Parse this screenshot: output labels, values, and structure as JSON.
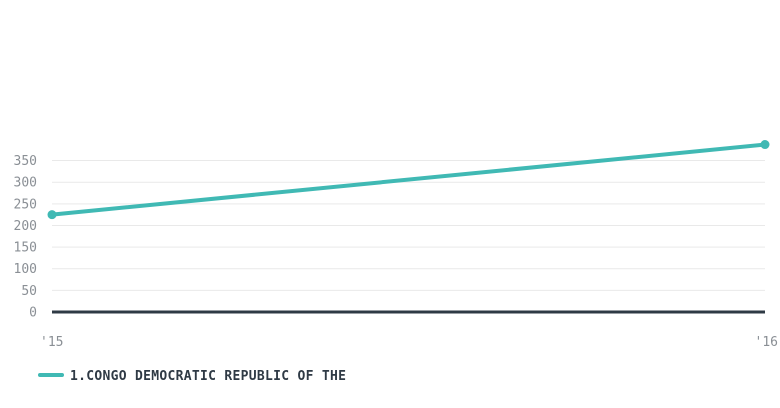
{
  "chart_data": {
    "type": "line",
    "x": [
      "'15",
      "'16"
    ],
    "series": [
      {
        "name": "1.CONGO DEMOCRATIC REPUBLIC OF THE",
        "values": [
          225,
          387
        ],
        "color": "#40b9b4"
      }
    ],
    "yticks": [
      0,
      50,
      100,
      150,
      200,
      250,
      300,
      350
    ],
    "ylim": [
      0,
      400
    ],
    "grid": true,
    "legend": "bottom-left",
    "colors": {
      "grid": "#e9e9e9",
      "baseline": "#2f3a45",
      "tick_text": "#8a8f95"
    }
  }
}
